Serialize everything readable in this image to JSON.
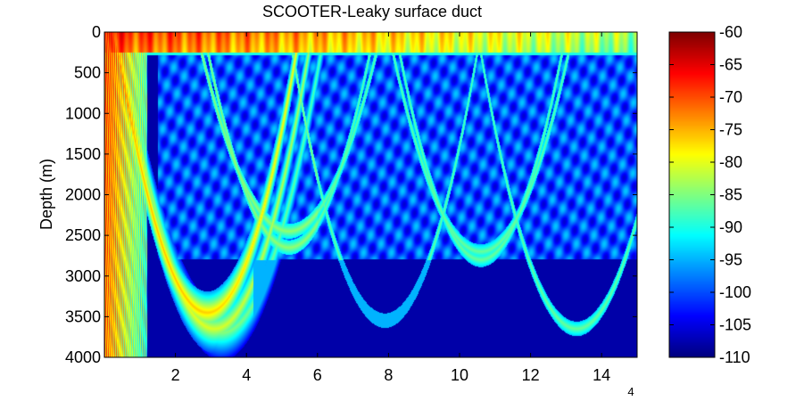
{
  "chart_data": {
    "type": "heatmap",
    "title": "SCOOTER-Leaky surface duct",
    "xlabel": "",
    "ylabel": "Depth (m)",
    "x_exponent_label": "4",
    "xlim": [
      0,
      15
    ],
    "ylim": [
      4000,
      0
    ],
    "x_ticks": [
      2,
      4,
      6,
      8,
      10,
      12,
      14
    ],
    "x_tick_labels": [
      "2",
      "4",
      "6",
      "8",
      "10",
      "12",
      "14"
    ],
    "y_ticks": [
      0,
      500,
      1000,
      1500,
      2000,
      2500,
      3000,
      3500,
      4000
    ],
    "y_tick_labels": [
      "0",
      "500",
      "1000",
      "1500",
      "2000",
      "2500",
      "3000",
      "3500",
      "4000"
    ],
    "colorbar": {
      "colormap": "jet",
      "range": [
        -110,
        -60
      ],
      "ticks": [
        -60,
        -65,
        -70,
        -75,
        -80,
        -85,
        -90,
        -95,
        -100,
        -105,
        -110
      ],
      "tick_labels": [
        "-60",
        "-65",
        "-70",
        "-75",
        "-80",
        "-85",
        "-90",
        "-95",
        "-100",
        "-105",
        "-110"
      ]
    },
    "features": {
      "duct_depth": 250,
      "shadow_zone_top": 2800,
      "convergence_ranges": [
        5.2,
        10.6
      ],
      "turning_depths": [
        3450,
        3650,
        3700
      ]
    },
    "colors": {
      "background": "#00007f",
      "axes": "#000000"
    }
  }
}
